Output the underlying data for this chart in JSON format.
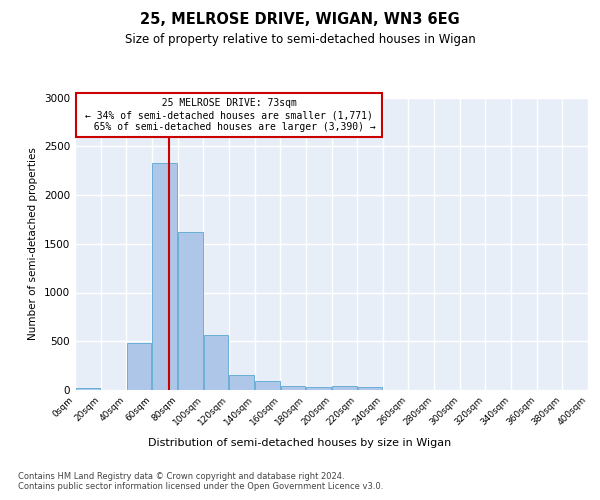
{
  "title1": "25, MELROSE DRIVE, WIGAN, WN3 6EG",
  "title2": "Size of property relative to semi-detached houses in Wigan",
  "xlabel": "Distribution of semi-detached houses by size in Wigan",
  "ylabel": "Number of semi-detached properties",
  "bar_bins": [
    0,
    20,
    40,
    60,
    80,
    100,
    120,
    140,
    160,
    180,
    200,
    220,
    240,
    260,
    280,
    300,
    320,
    340,
    360,
    380,
    400
  ],
  "bar_heights": [
    20,
    0,
    480,
    2330,
    1620,
    560,
    155,
    90,
    40,
    35,
    40,
    35,
    0,
    0,
    0,
    0,
    0,
    0,
    0,
    0
  ],
  "bar_color": "#aec6e8",
  "bar_edgecolor": "#6aaed6",
  "property_size": 73,
  "property_label": "25 MELROSE DRIVE: 73sqm",
  "pct_smaller": 34,
  "pct_larger": 65,
  "n_smaller": 1771,
  "n_larger": 3390,
  "annotation_box_edgecolor": "#cc0000",
  "vline_color": "#cc0000",
  "ylim": [
    0,
    3000
  ],
  "yticks": [
    0,
    500,
    1000,
    1500,
    2000,
    2500,
    3000
  ],
  "bg_color": "#e8eef8",
  "grid_color": "#ffffff",
  "footer1": "Contains HM Land Registry data © Crown copyright and database right 2024.",
  "footer2": "Contains public sector information licensed under the Open Government Licence v3.0."
}
